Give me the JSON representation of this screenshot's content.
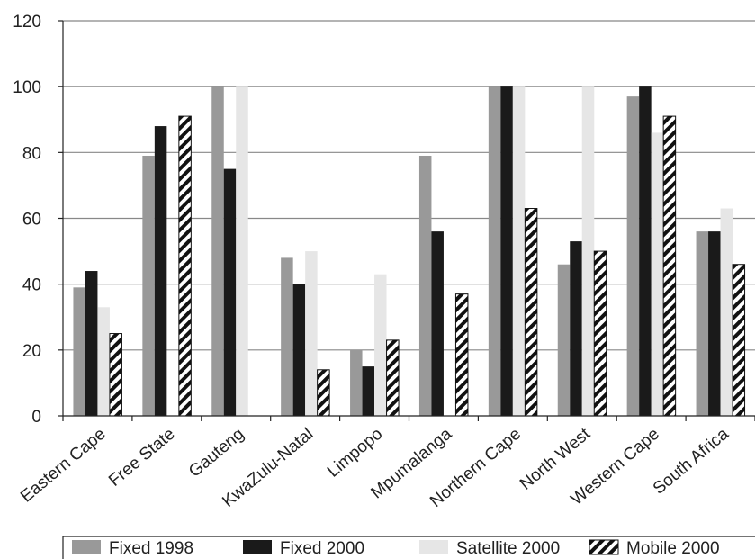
{
  "chart_data": {
    "type": "bar",
    "categories": [
      "Eastern Cape",
      "Free State",
      "Gauteng",
      "KwaZulu-Natal",
      "Limpopo",
      "Mpumalanga",
      "Northern Cape",
      "North West",
      "Western Cape",
      "South Africa"
    ],
    "series": [
      {
        "name": "Fixed 1998",
        "color": "#999999",
        "pattern": "solid",
        "values": [
          39,
          79,
          100,
          48,
          20,
          79,
          100,
          46,
          97,
          56
        ]
      },
      {
        "name": "Fixed 2000",
        "color": "#1a1a1a",
        "pattern": "solid",
        "values": [
          44,
          88,
          75,
          40,
          15,
          56,
          100,
          53,
          100,
          56
        ]
      },
      {
        "name": "Satellite 2000",
        "color": "#e6e6e6",
        "pattern": "solid",
        "values": [
          33,
          0,
          100,
          50,
          43,
          0,
          100,
          100,
          86,
          63
        ]
      },
      {
        "name": "Mobile 2000",
        "color": "#ffffff",
        "pattern": "diagonal-hatch",
        "values": [
          25,
          91,
          0,
          14,
          23,
          37,
          63,
          50,
          91,
          46
        ]
      }
    ],
    "title": "",
    "xlabel": "",
    "ylabel": "",
    "ylim": [
      0,
      120
    ],
    "yticks": [
      0,
      20,
      40,
      60,
      80,
      100,
      120
    ],
    "grid": true,
    "legend": "bottom"
  }
}
